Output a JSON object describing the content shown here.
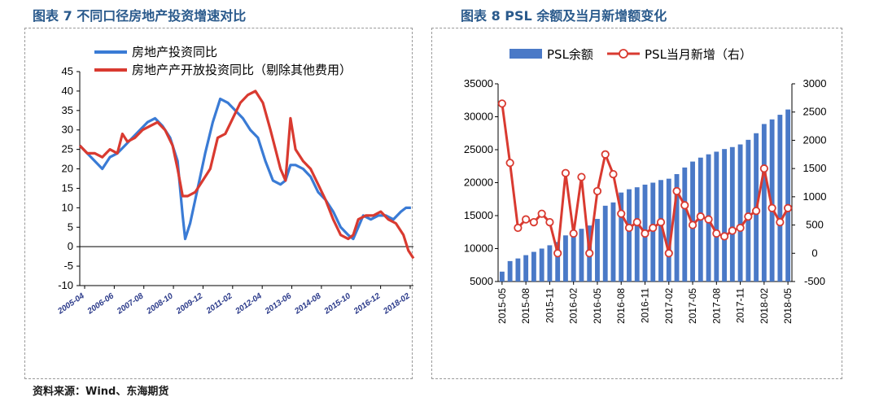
{
  "titles": {
    "left": "图表 7 不同口径房地产投资增速对比",
    "right": "图表 8 PSL 余额及当月新增额变化"
  },
  "source": "资料来源：Wind、东海期货",
  "colors": {
    "blue": "#3a7bd5",
    "red": "#d93a30",
    "bar": "#4a79c7"
  },
  "chart_data": [
    {
      "type": "line",
      "title": "图表 7 不同口径房地产投资增速对比",
      "ylim": [
        -10,
        45
      ],
      "yticks": [
        45,
        40,
        35,
        30,
        25,
        20,
        15,
        10,
        5,
        0,
        -5,
        -10
      ],
      "x_ticks": [
        "2005-04",
        "2006-06",
        "2007-08",
        "2008-10",
        "2009-12",
        "2011-02",
        "2012-04",
        "2013-06",
        "2014-08",
        "2015-10",
        "2016-12",
        "2018-02"
      ],
      "x_range": [
        "2005-01",
        "2018-05"
      ],
      "series": [
        {
          "name": "房地产投资同比",
          "color": "blue",
          "points": [
            [
              0,
              26
            ],
            [
              6,
              24
            ],
            [
              12,
              22
            ],
            [
              18,
              20
            ],
            [
              24,
              23
            ],
            [
              30,
              24
            ],
            [
              36,
              26
            ],
            [
              42,
              28
            ],
            [
              48,
              30
            ],
            [
              54,
              32
            ],
            [
              60,
              33
            ],
            [
              66,
              31
            ],
            [
              72,
              28
            ],
            [
              78,
              22
            ],
            [
              80,
              15
            ],
            [
              82,
              8
            ],
            [
              84,
              2
            ],
            [
              88,
              6
            ],
            [
              92,
              12
            ],
            [
              96,
              18
            ],
            [
              100,
              24
            ],
            [
              106,
              32
            ],
            [
              112,
              38
            ],
            [
              118,
              37
            ],
            [
              124,
              35
            ],
            [
              130,
              33
            ],
            [
              136,
              30
            ],
            [
              142,
              28
            ],
            [
              148,
              22
            ],
            [
              154,
              17
            ],
            [
              160,
              16
            ],
            [
              164,
              17
            ],
            [
              168,
              21
            ],
            [
              172,
              21
            ],
            [
              178,
              20
            ],
            [
              184,
              18
            ],
            [
              190,
              14
            ],
            [
              196,
              12
            ],
            [
              202,
              9
            ],
            [
              208,
              5
            ],
            [
              214,
              3
            ],
            [
              218,
              2
            ],
            [
              222,
              5
            ],
            [
              226,
              8
            ],
            [
              232,
              7
            ],
            [
              238,
              8
            ],
            [
              244,
              8
            ],
            [
              250,
              7
            ],
            [
              256,
              9
            ],
            [
              260,
              10
            ],
            [
              264,
              10
            ]
          ]
        },
        {
          "name": "房地产产开放投资同比（剔除其他费用）",
          "color": "red",
          "points": [
            [
              0,
              26
            ],
            [
              6,
              24
            ],
            [
              12,
              24
            ],
            [
              18,
              23
            ],
            [
              24,
              25
            ],
            [
              30,
              24
            ],
            [
              34,
              29
            ],
            [
              38,
              27
            ],
            [
              44,
              28
            ],
            [
              50,
              30
            ],
            [
              56,
              31
            ],
            [
              62,
              32
            ],
            [
              68,
              30
            ],
            [
              74,
              26
            ],
            [
              78,
              20
            ],
            [
              82,
              13
            ],
            [
              86,
              13
            ],
            [
              92,
              14
            ],
            [
              98,
              17
            ],
            [
              104,
              20
            ],
            [
              110,
              28
            ],
            [
              116,
              29
            ],
            [
              122,
              33
            ],
            [
              128,
              37
            ],
            [
              134,
              39
            ],
            [
              140,
              40
            ],
            [
              146,
              37
            ],
            [
              152,
              30
            ],
            [
              156,
              25
            ],
            [
              160,
              20
            ],
            [
              164,
              17
            ],
            [
              168,
              33
            ],
            [
              172,
              25
            ],
            [
              178,
              22
            ],
            [
              184,
              20
            ],
            [
              190,
              16
            ],
            [
              196,
              12
            ],
            [
              202,
              7
            ],
            [
              208,
              3
            ],
            [
              214,
              2
            ],
            [
              218,
              3
            ],
            [
              222,
              7
            ],
            [
              228,
              8
            ],
            [
              234,
              8
            ],
            [
              240,
              9
            ],
            [
              246,
              7
            ],
            [
              252,
              6
            ],
            [
              258,
              3
            ],
            [
              262,
              -1
            ],
            [
              266,
              -3
            ]
          ]
        }
      ]
    },
    {
      "type": "bar+line",
      "title": "图表 8 PSL 余额及当月新增额变化",
      "ylim_left": [
        5000,
        35000
      ],
      "yticks_left": [
        35000,
        30000,
        25000,
        20000,
        15000,
        10000,
        5000
      ],
      "ylim_right": [
        -500,
        3000
      ],
      "yticks_right": [
        3000,
        2500,
        2000,
        1500,
        1000,
        500,
        0,
        -500
      ],
      "categories": [
        "2015-05",
        "2015-06",
        "2015-07",
        "2015-08",
        "2015-09",
        "2015-10",
        "2015-11",
        "2015-12",
        "2016-01",
        "2016-02",
        "2016-03",
        "2016-04",
        "2016-05",
        "2016-06",
        "2016-07",
        "2016-08",
        "2016-09",
        "2016-10",
        "2016-11",
        "2016-12",
        "2017-01",
        "2017-02",
        "2017-03",
        "2017-04",
        "2017-05",
        "2017-06",
        "2017-07",
        "2017-08",
        "2017-09",
        "2017-10",
        "2017-11",
        "2017-12",
        "2018-01",
        "2018-02",
        "2018-03",
        "2018-04",
        "2018-05"
      ],
      "x_tick_labels": [
        "2015-05",
        "2015-08",
        "2015-11",
        "2016-02",
        "2016-05",
        "2016-08",
        "2016-11",
        "2017-02",
        "2017-05",
        "2017-08",
        "2017-11",
        "2018-02",
        "2018-05"
      ],
      "series": [
        {
          "name": "PSL余额",
          "type": "bar",
          "values": [
            6500,
            8100,
            8500,
            9000,
            9500,
            10000,
            10500,
            11000,
            12000,
            12400,
            13000,
            13500,
            14500,
            16500,
            17000,
            18500,
            19000,
            19300,
            19700,
            20000,
            20400,
            20600,
            21300,
            22300,
            23200,
            23800,
            24300,
            24700,
            25100,
            25400,
            25800,
            26500,
            27500,
            28900,
            29600,
            30300,
            31100
          ]
        },
        {
          "name": "PSL当月新增（右）",
          "type": "line",
          "values": [
            2650,
            1600,
            450,
            600,
            550,
            700,
            550,
            0,
            1420,
            350,
            1350,
            0,
            1100,
            1750,
            1400,
            700,
            450,
            550,
            350,
            450,
            550,
            0,
            1100,
            850,
            500,
            650,
            600,
            350,
            300,
            400,
            450,
            650,
            750,
            1500,
            800,
            550,
            800
          ]
        }
      ]
    }
  ]
}
